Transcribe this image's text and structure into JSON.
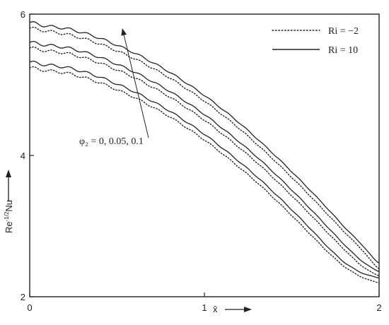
{
  "chart_data": {
    "type": "line",
    "title": "",
    "xlabel": "x̄",
    "ylabel": "Re^-1/2 Nu",
    "ylabel_main": "Re",
    "ylabel_sup": "-1/2",
    "ylabel_tail": "Nu",
    "xlim": [
      0,
      2
    ],
    "ylim": [
      2,
      6
    ],
    "x_ticks": [
      0,
      1,
      2
    ],
    "x_tick_labels": [
      "0",
      "1",
      "2"
    ],
    "y_ticks": [
      2,
      4,
      6
    ],
    "y_tick_labels": [
      "2",
      "4",
      "6"
    ],
    "grid": false,
    "legend": {
      "placement": "top-right",
      "entries": [
        {
          "label": "Ri = −2",
          "style": "dotted"
        },
        {
          "label": "Ri = 10",
          "style": "solid"
        }
      ]
    },
    "annotation": {
      "text": "φ₂ = 0, 0.05, 0.1",
      "arrow_from": [
        0.68,
        4.25
      ],
      "arrow_to": [
        0.53,
        5.8
      ]
    },
    "x": [
      0,
      0.1,
      0.2,
      0.3,
      0.4,
      0.5,
      0.6,
      0.7,
      0.8,
      0.9,
      1.0,
      1.1,
      1.2,
      1.3,
      1.4,
      1.5,
      1.6,
      1.7,
      1.8,
      1.9,
      2.0
    ],
    "series": [
      {
        "name": "Ri = 10",
        "phi2": "0.1",
        "style": "solid",
        "values": [
          5.88,
          5.83,
          5.8,
          5.74,
          5.66,
          5.56,
          5.45,
          5.32,
          5.18,
          5.02,
          4.85,
          4.66,
          4.46,
          4.24,
          4.01,
          3.77,
          3.52,
          3.26,
          2.99,
          2.74,
          2.48
        ]
      },
      {
        "name": "Ri = 10",
        "phi2": "0.05",
        "style": "solid",
        "values": [
          5.6,
          5.56,
          5.53,
          5.47,
          5.39,
          5.29,
          5.18,
          5.05,
          4.91,
          4.75,
          4.58,
          4.39,
          4.19,
          3.98,
          3.75,
          3.51,
          3.26,
          3.0,
          2.74,
          2.51,
          2.36
        ]
      },
      {
        "name": "Ri = 10",
        "phi2": "0",
        "style": "solid",
        "values": [
          5.32,
          5.28,
          5.25,
          5.19,
          5.11,
          5.01,
          4.9,
          4.77,
          4.63,
          4.47,
          4.3,
          4.11,
          3.91,
          3.7,
          3.47,
          3.23,
          2.98,
          2.72,
          2.49,
          2.34,
          2.27
        ]
      },
      {
        "name": "Ri = −2",
        "phi2": "0.1",
        "style": "dotted",
        "values": [
          5.8,
          5.76,
          5.72,
          5.66,
          5.58,
          5.48,
          5.37,
          5.24,
          5.1,
          4.94,
          4.77,
          4.58,
          4.38,
          4.16,
          3.93,
          3.69,
          3.44,
          3.18,
          2.92,
          2.67,
          2.4
        ]
      },
      {
        "name": "Ri = −2",
        "phi2": "0.05",
        "style": "dotted",
        "values": [
          5.52,
          5.48,
          5.45,
          5.39,
          5.31,
          5.21,
          5.1,
          4.97,
          4.83,
          4.67,
          4.5,
          4.31,
          4.11,
          3.9,
          3.67,
          3.43,
          3.18,
          2.92,
          2.67,
          2.44,
          2.3
        ]
      },
      {
        "name": "Ri = −2",
        "phi2": "0",
        "style": "dotted",
        "values": [
          5.24,
          5.2,
          5.17,
          5.11,
          5.03,
          4.93,
          4.82,
          4.69,
          4.55,
          4.39,
          4.22,
          4.03,
          3.83,
          3.62,
          3.39,
          3.15,
          2.9,
          2.65,
          2.43,
          2.28,
          2.2
        ]
      }
    ]
  }
}
